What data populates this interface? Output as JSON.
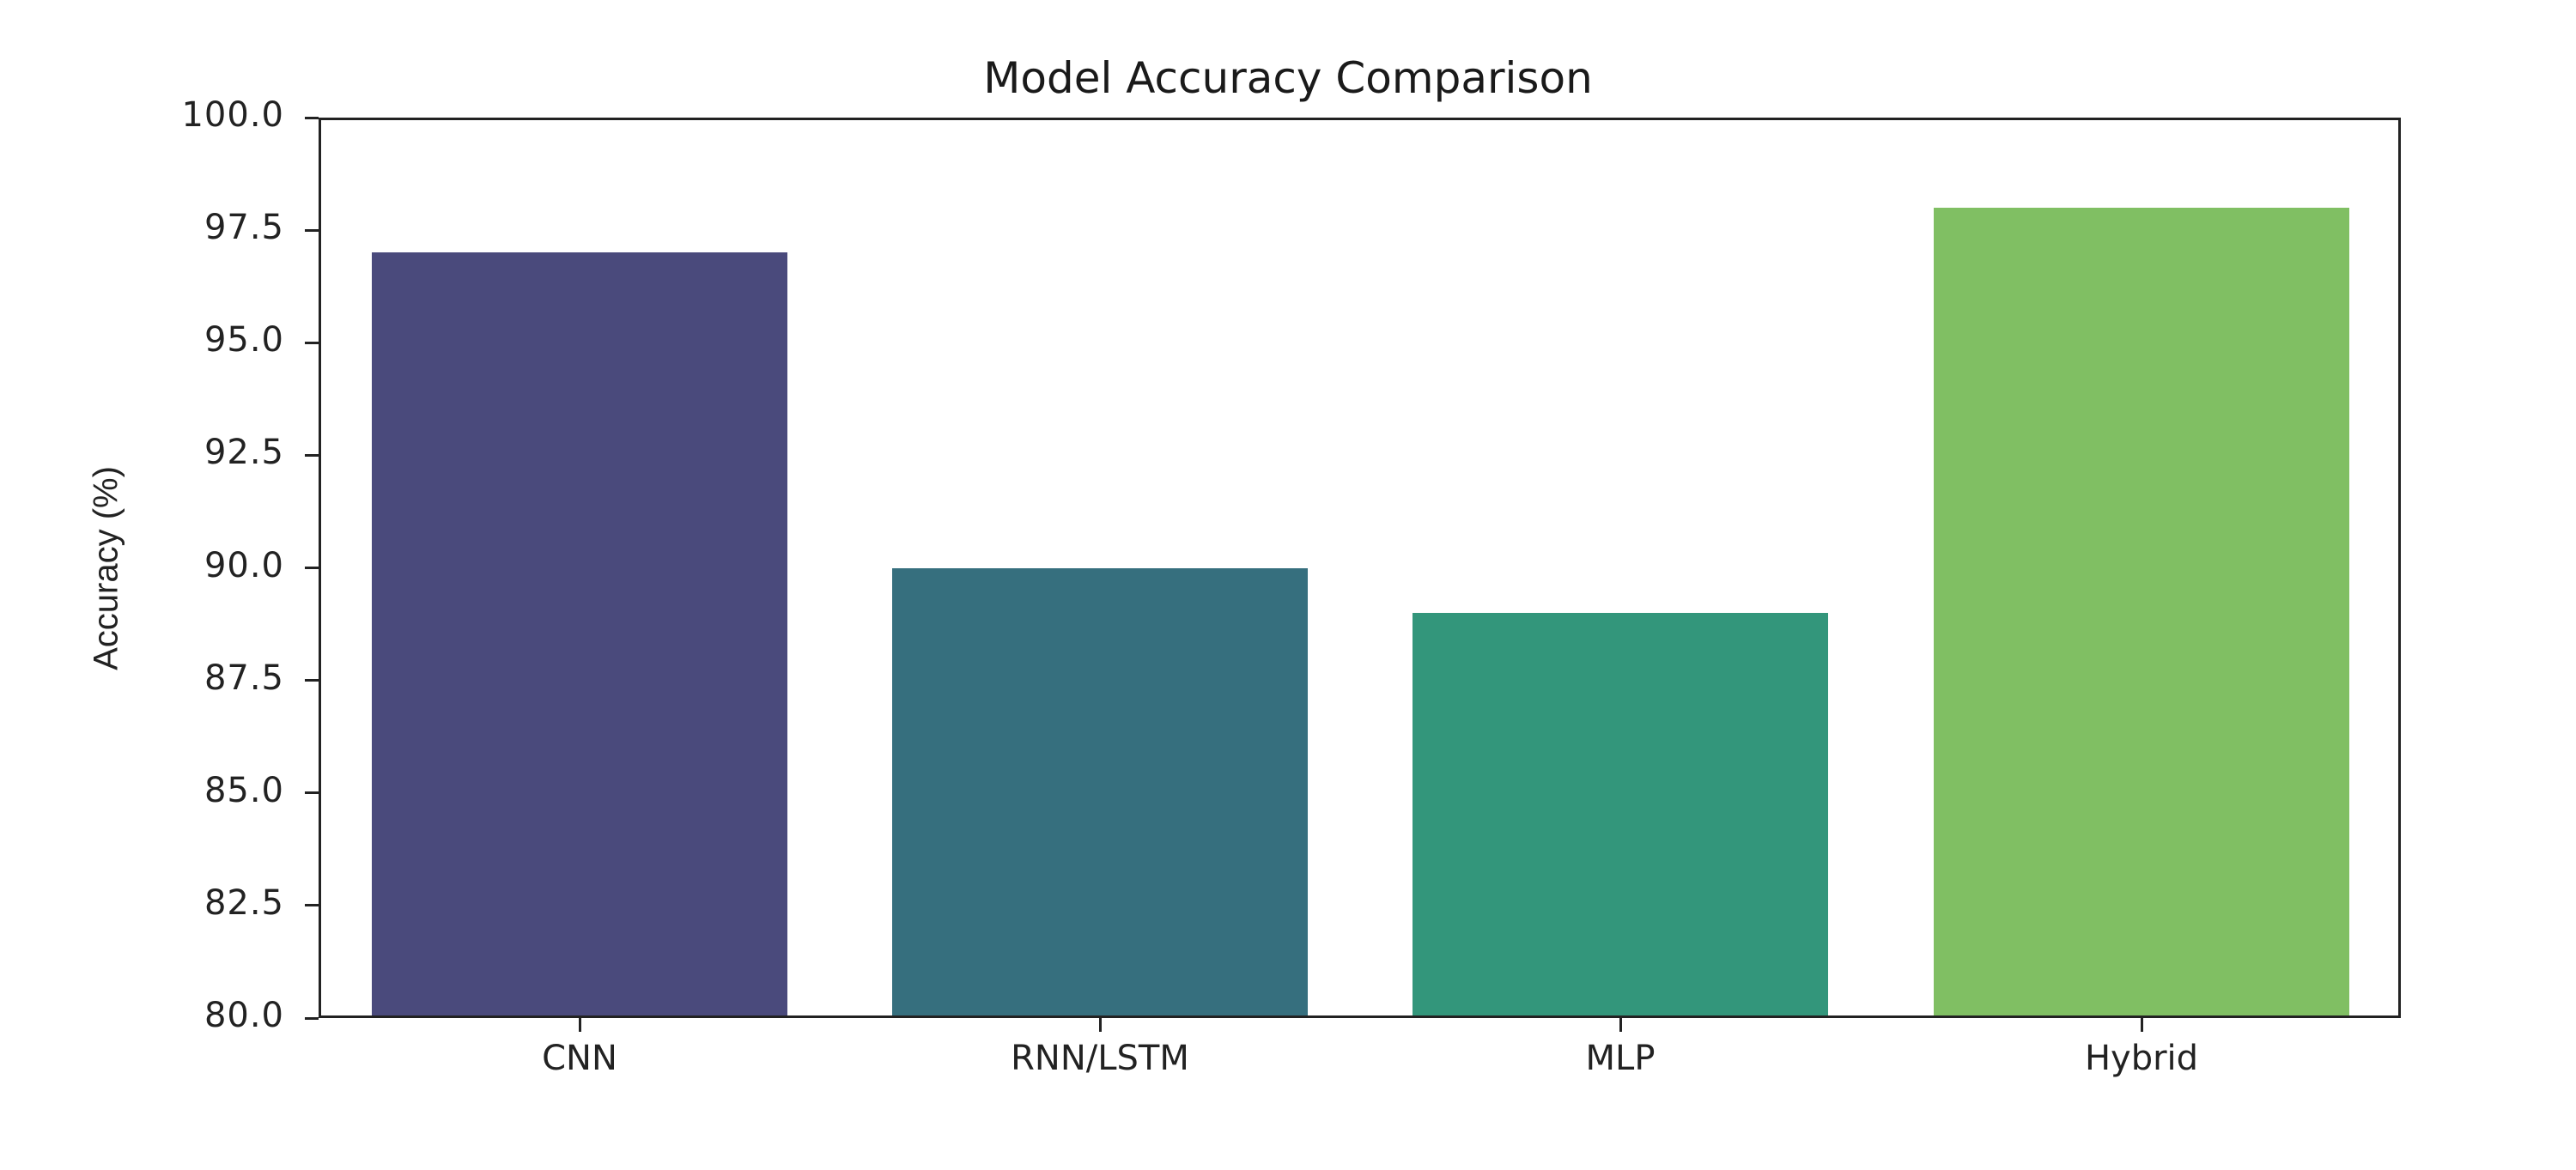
{
  "chart_data": {
    "type": "bar",
    "title": "Model Accuracy Comparison",
    "xlabel": "",
    "ylabel": "Accuracy (%)",
    "categories": [
      "CNN",
      "RNN/LSTM",
      "MLP",
      "Hybrid"
    ],
    "values": [
      97.0,
      90.0,
      89.0,
      98.0
    ],
    "colors": [
      "#4a4a7c",
      "#366f7e",
      "#33967b",
      "#80bf63"
    ],
    "ylim": [
      80.0,
      100.0
    ],
    "yticks": [
      "80.0",
      "82.5",
      "85.0",
      "87.5",
      "90.0",
      "92.5",
      "95.0",
      "97.5",
      "100.0"
    ],
    "grid": false,
    "legend": null
  }
}
